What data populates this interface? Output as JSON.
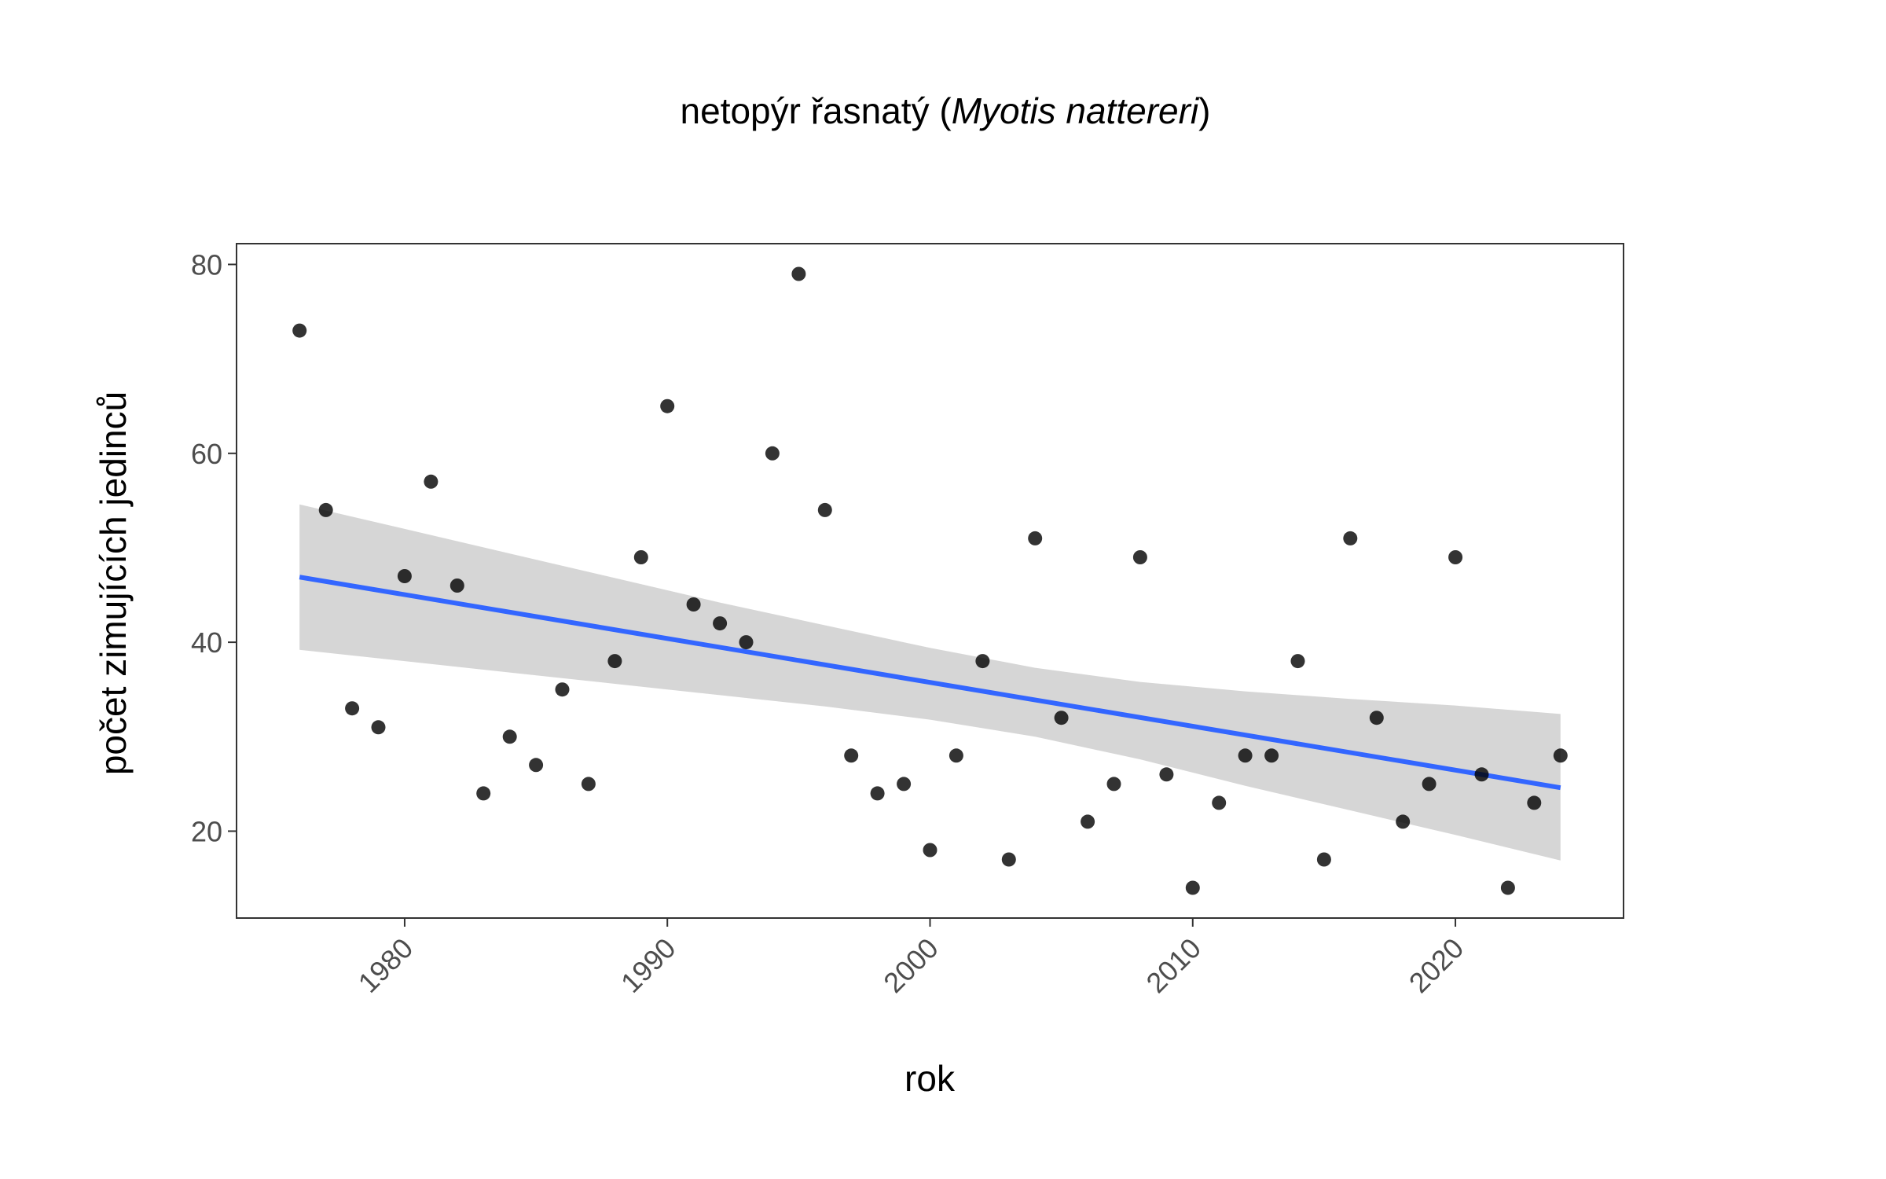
{
  "chart_data": {
    "type": "scatter",
    "title": {
      "prefix": "netopýr řasnatý (",
      "species": "Myotis nattereri",
      "suffix": ")"
    },
    "xlabel": "rok",
    "ylabel": "počet zimujících jedinců",
    "xlim": [
      1973.6,
      2026.4
    ],
    "ylim": [
      10.8,
      82.2
    ],
    "xticks": [
      1980,
      1990,
      2000,
      2010,
      2020
    ],
    "yticks": [
      20,
      40,
      60,
      80
    ],
    "grid": false,
    "legend": "none",
    "points": {
      "x": [
        1976,
        1977,
        1978,
        1979,
        1980,
        1981,
        1982,
        1983,
        1984,
        1985,
        1986,
        1987,
        1988,
        1989,
        1990,
        1991,
        1992,
        1993,
        1994,
        1995,
        1996,
        1997,
        1998,
        1999,
        2000,
        2001,
        2002,
        2003,
        2004,
        2005,
        2006,
        2007,
        2008,
        2009,
        2010,
        2011,
        2012,
        2013,
        2014,
        2015,
        2016,
        2017,
        2018,
        2019,
        2020,
        2021,
        2022,
        2023,
        2024
      ],
      "y": [
        73,
        54,
        33,
        31,
        47,
        57,
        46,
        24,
        30,
        27,
        35,
        25,
        38,
        49,
        65,
        44,
        42,
        40,
        60,
        79,
        54,
        28,
        24,
        25,
        18,
        28,
        38,
        17,
        51,
        32,
        21,
        25,
        49,
        26,
        14,
        23,
        28,
        28,
        38,
        17,
        51,
        32,
        21,
        25,
        49,
        26,
        14,
        23,
        28
      ]
    },
    "trend": {
      "x": [
        1976,
        2024
      ],
      "y": [
        46.9,
        24.6
      ]
    },
    "confidence_band": {
      "x": [
        1976,
        1980,
        1984,
        1988,
        1992,
        1996,
        2000,
        2004,
        2008,
        2012,
        2016,
        2020,
        2024
      ],
      "lower": [
        39.2,
        38.0,
        36.8,
        35.6,
        34.4,
        33.2,
        31.8,
        30.0,
        27.6,
        24.8,
        22.2,
        19.6,
        16.9
      ],
      "upper": [
        54.6,
        52.0,
        49.4,
        46.8,
        44.2,
        41.8,
        39.4,
        37.3,
        35.8,
        34.8,
        34.0,
        33.3,
        32.4
      ]
    },
    "colors": {
      "points": "#000000",
      "trend": "#3366ff",
      "band": "#c8c8c8",
      "panel_border": "#333333",
      "tick_text": "#4d4d4d"
    }
  }
}
